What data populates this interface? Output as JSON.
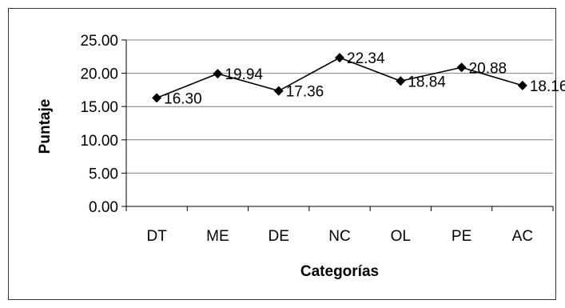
{
  "chart_data": {
    "type": "line",
    "title": "",
    "xlabel": "Categorías",
    "ylabel": "Puntaje",
    "categories": [
      "DT",
      "ME",
      "DE",
      "NC",
      "OL",
      "PE",
      "AC"
    ],
    "series": [
      {
        "values": [
          16.3,
          19.94,
          17.36,
          22.34,
          18.84,
          20.88,
          18.16
        ],
        "labels": [
          "16.30",
          "19.94",
          "17.36",
          "22.34",
          "18.84",
          "20.88",
          "18.16"
        ]
      }
    ],
    "ylim": [
      0,
      25
    ],
    "yticks": [
      0,
      5,
      10,
      15,
      20,
      25
    ],
    "ytick_labels": [
      "0.00",
      "5.00",
      "10.00",
      "15.00",
      "20.00",
      "25.00"
    ],
    "grid": true,
    "legend": "none",
    "marker": "diamond",
    "colors": {
      "line": "#000000",
      "grid": "#7f7f7f",
      "axis": "#000000"
    }
  }
}
